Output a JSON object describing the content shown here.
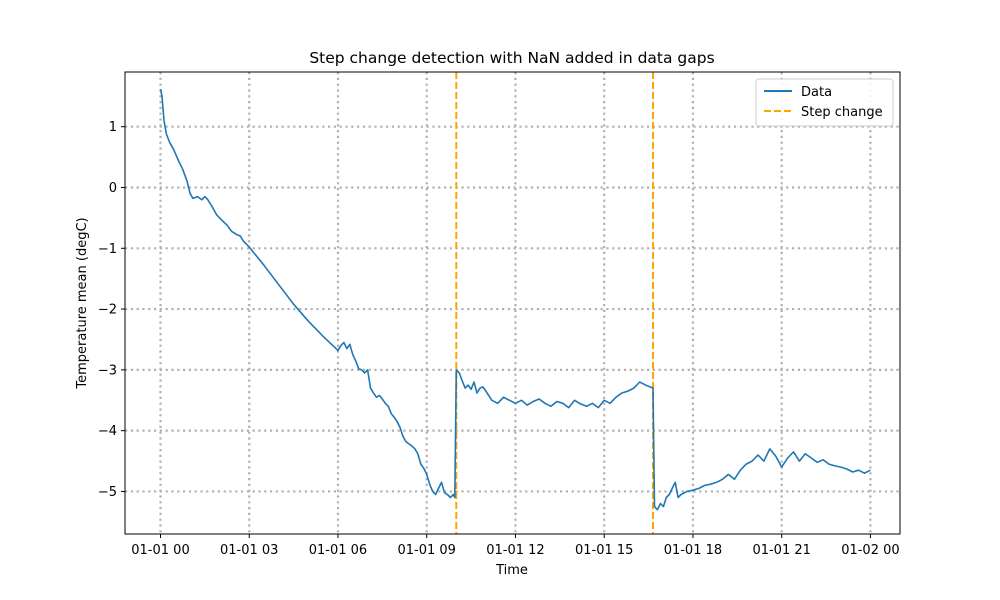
{
  "chart_data": {
    "type": "line",
    "title": "Step change detection with NaN added in data gaps",
    "xlabel": "Time",
    "ylabel": "Temperature mean (degC)",
    "x_axis_unit": "hours",
    "xlim": [
      -1.2,
      25
    ],
    "ylim": [
      -5.7,
      1.9
    ],
    "x_ticks": [
      {
        "value": 0,
        "label": "01-01 00"
      },
      {
        "value": 3,
        "label": "01-01 03"
      },
      {
        "value": 6,
        "label": "01-01 06"
      },
      {
        "value": 9,
        "label": "01-01 09"
      },
      {
        "value": 12,
        "label": "01-01 12"
      },
      {
        "value": 15,
        "label": "01-01 15"
      },
      {
        "value": 18,
        "label": "01-01 18"
      },
      {
        "value": 21,
        "label": "01-01 21"
      },
      {
        "value": 24,
        "label": "01-02 00"
      }
    ],
    "y_ticks": [
      {
        "value": 1,
        "label": "1"
      },
      {
        "value": 0,
        "label": "0"
      },
      {
        "value": -1,
        "label": "−1"
      },
      {
        "value": -2,
        "label": "−2"
      },
      {
        "value": -3,
        "label": "−3"
      },
      {
        "value": -4,
        "label": "−4"
      },
      {
        "value": -5,
        "label": "−5"
      }
    ],
    "grid": true,
    "legend": {
      "position": "top-right",
      "entries": [
        {
          "label": "Data",
          "color": "#1f77b4",
          "style": "solid"
        },
        {
          "label": "Step change",
          "color": "#ffa500",
          "style": "dashed"
        }
      ]
    },
    "series": [
      {
        "name": "Data",
        "color": "#1f77b4",
        "x": [
          0.0,
          0.05,
          0.12,
          0.2,
          0.3,
          0.45,
          0.6,
          0.75,
          0.9,
          1.0,
          1.1,
          1.25,
          1.4,
          1.5,
          1.6,
          1.75,
          1.9,
          2.0,
          2.1,
          2.25,
          2.4,
          2.5,
          2.6,
          2.7,
          2.8,
          2.9,
          3.0,
          3.5,
          4.0,
          4.5,
          5.0,
          5.5,
          6.0,
          6.1,
          6.2,
          6.3,
          6.4,
          6.5,
          6.6,
          6.7,
          6.8,
          6.9,
          7.0,
          7.1,
          7.2,
          7.3,
          7.4,
          7.5,
          7.6,
          7.7,
          7.8,
          7.9,
          8.0,
          8.1,
          8.2,
          8.3,
          8.4,
          8.5,
          8.6,
          8.7,
          8.8,
          8.9,
          9.0,
          9.1,
          9.2,
          9.3,
          9.4,
          9.5,
          9.6,
          9.7,
          9.8,
          9.9,
          9.95,
          10.0,
          10.1,
          10.2,
          10.3,
          10.4,
          10.5,
          10.6,
          10.7,
          10.8,
          10.9,
          11.0,
          11.2,
          11.4,
          11.6,
          11.8,
          12.0,
          12.2,
          12.4,
          12.6,
          12.8,
          13.0,
          13.2,
          13.4,
          13.6,
          13.8,
          14.0,
          14.2,
          14.4,
          14.6,
          14.8,
          15.0,
          15.2,
          15.4,
          15.6,
          15.8,
          16.0,
          16.2,
          16.4,
          16.55,
          16.65,
          16.7,
          16.8,
          16.9,
          17.0,
          17.1,
          17.2,
          17.3,
          17.4,
          17.5,
          17.6,
          17.8,
          18.0,
          18.2,
          18.4,
          18.6,
          18.8,
          19.0,
          19.2,
          19.4,
          19.6,
          19.8,
          20.0,
          20.2,
          20.4,
          20.6,
          20.8,
          21.0,
          21.2,
          21.4,
          21.6,
          21.8,
          22.0,
          22.2,
          22.4,
          22.6,
          22.8,
          23.0,
          23.2,
          23.4,
          23.6,
          23.8,
          24.0
        ],
        "y": [
          1.62,
          1.5,
          1.1,
          0.88,
          0.75,
          0.62,
          0.45,
          0.3,
          0.1,
          -0.1,
          -0.18,
          -0.15,
          -0.2,
          -0.15,
          -0.2,
          -0.32,
          -0.45,
          -0.5,
          -0.55,
          -0.62,
          -0.72,
          -0.75,
          -0.78,
          -0.8,
          -0.88,
          -0.93,
          -0.98,
          -1.28,
          -1.6,
          -1.92,
          -2.2,
          -2.45,
          -2.68,
          -2.6,
          -2.55,
          -2.65,
          -2.58,
          -2.75,
          -2.85,
          -2.98,
          -3.0,
          -3.05,
          -3.0,
          -3.3,
          -3.38,
          -3.45,
          -3.42,
          -3.48,
          -3.55,
          -3.6,
          -3.72,
          -3.78,
          -3.85,
          -3.95,
          -4.1,
          -4.18,
          -4.22,
          -4.25,
          -4.3,
          -4.38,
          -4.55,
          -4.62,
          -4.72,
          -4.88,
          -5.0,
          -5.05,
          -4.95,
          -4.85,
          -5.02,
          -5.05,
          -5.1,
          -5.05,
          -5.1,
          -3.0,
          -3.05,
          -3.18,
          -3.3,
          -3.25,
          -3.32,
          -3.2,
          -3.38,
          -3.3,
          -3.28,
          -3.35,
          -3.5,
          -3.55,
          -3.45,
          -3.5,
          -3.55,
          -3.5,
          -3.58,
          -3.52,
          -3.48,
          -3.55,
          -3.6,
          -3.52,
          -3.55,
          -3.62,
          -3.5,
          -3.56,
          -3.6,
          -3.55,
          -3.62,
          -3.5,
          -3.55,
          -3.45,
          -3.38,
          -3.35,
          -3.3,
          -3.2,
          -3.25,
          -3.28,
          -3.3,
          -5.25,
          -5.3,
          -5.2,
          -5.25,
          -5.1,
          -5.05,
          -4.95,
          -4.85,
          -5.1,
          -5.05,
          -5.0,
          -4.98,
          -4.95,
          -4.9,
          -4.88,
          -4.85,
          -4.8,
          -4.72,
          -4.8,
          -4.65,
          -4.55,
          -4.5,
          -4.4,
          -4.5,
          -4.3,
          -4.42,
          -4.6,
          -4.45,
          -4.35,
          -4.5,
          -4.38,
          -4.45,
          -4.52,
          -4.48,
          -4.55,
          -4.58,
          -4.6,
          -4.63,
          -4.68,
          -4.65,
          -4.7,
          -4.65
        ]
      }
    ],
    "step_changes": [
      {
        "x": 10.0,
        "label": "Step change"
      },
      {
        "x": 16.65,
        "label": "Step change"
      }
    ]
  }
}
